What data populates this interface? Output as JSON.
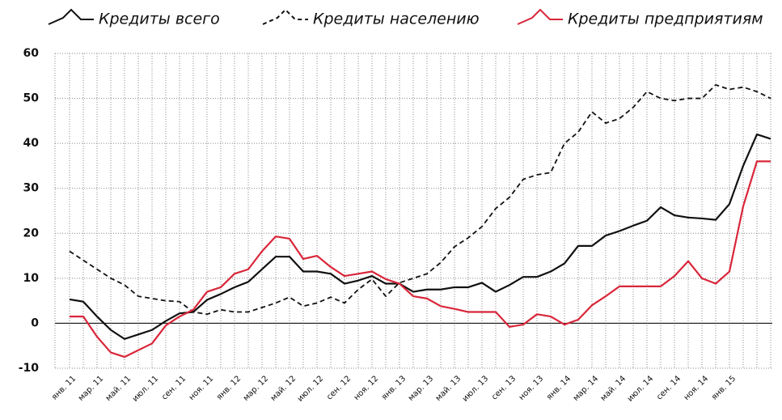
{
  "chart_data": {
    "type": "line",
    "categories": [
      "янв. 11",
      null,
      "мар. 11",
      null,
      "май. 11",
      null,
      "июл. 11",
      null,
      "сен. 11",
      null,
      "ноя. 11",
      null,
      "янв. 12",
      null,
      "мар. 12",
      null,
      "май. 12",
      null,
      "июл. 12",
      null,
      "сен. 12",
      null,
      "ноя. 12",
      null,
      "янв. 13",
      null,
      "мар. 13",
      null,
      "май. 13",
      null,
      "июл. 13",
      null,
      "сен. 13",
      null,
      "ноя. 13",
      null,
      "янв. 14",
      null,
      "мар. 14",
      null,
      "май. 14",
      null,
      "июл. 14",
      null,
      "сен. 14",
      null,
      "ноя. 14",
      null,
      "янв. 15",
      null,
      null,
      null
    ],
    "series": [
      {
        "name": "Кредиты всего",
        "color": "#111111",
        "dash": false,
        "values": [
          5.3,
          4.8,
          1.5,
          -1.5,
          -3.5,
          -2.5,
          -1.5,
          0.5,
          2.2,
          2.5,
          5.2,
          6.5,
          8,
          9.2,
          12,
          14.8,
          14.8,
          11.5,
          11.5,
          11,
          8.8,
          9.5,
          10.5,
          8.8,
          8.8,
          7,
          7.5,
          7.5,
          8,
          8,
          9,
          7,
          8.5,
          10.3,
          10.3,
          11.5,
          13.3,
          17.2,
          17.2,
          19.5,
          20.5,
          21.7,
          22.8,
          25.8,
          24,
          23.5,
          23.3,
          23,
          26.5,
          35,
          42,
          41
        ]
      },
      {
        "name": "Кредиты населению",
        "color": "#111111",
        "dash": true,
        "values": [
          16,
          14,
          12,
          10,
          8.5,
          6,
          5.5,
          5,
          4.8,
          2.5,
          2,
          3,
          2.5,
          2.5,
          3.5,
          4.5,
          5.8,
          3.8,
          4.5,
          5.8,
          4.5,
          7.5,
          9.8,
          6,
          9,
          10,
          11,
          13.5,
          17,
          19,
          21.5,
          25.5,
          28,
          32,
          33,
          33.5,
          40,
          42.5,
          47,
          44.5,
          45.5,
          48,
          51.5,
          50,
          49.5,
          50,
          50,
          53,
          52,
          52.5,
          51.5,
          50
        ]
      },
      {
        "name": "Кредиты предприятиям",
        "color": "#d9263a",
        "dash": false,
        "values": [
          1.5,
          1.5,
          -3,
          -6.5,
          -7.5,
          -6,
          -4.5,
          -0.5,
          1.5,
          3,
          7,
          8,
          11,
          12,
          16,
          19.3,
          18.8,
          14.3,
          15,
          12.5,
          10.5,
          11,
          11.5,
          9.8,
          8.8,
          6,
          5.5,
          3.8,
          3.2,
          2.5,
          2.5,
          2.5,
          -0.8,
          -0.3,
          2,
          1.5,
          -0.3,
          0.8,
          4,
          6,
          8.2,
          8.2,
          8.2,
          8.2,
          10.5,
          13.8,
          10,
          8.8,
          11.5,
          26,
          36,
          36
        ]
      }
    ],
    "ylim": [
      -10,
      60
    ],
    "yticks": [
      -10,
      0,
      10,
      20,
      30,
      40,
      50,
      60
    ],
    "grid": true
  }
}
